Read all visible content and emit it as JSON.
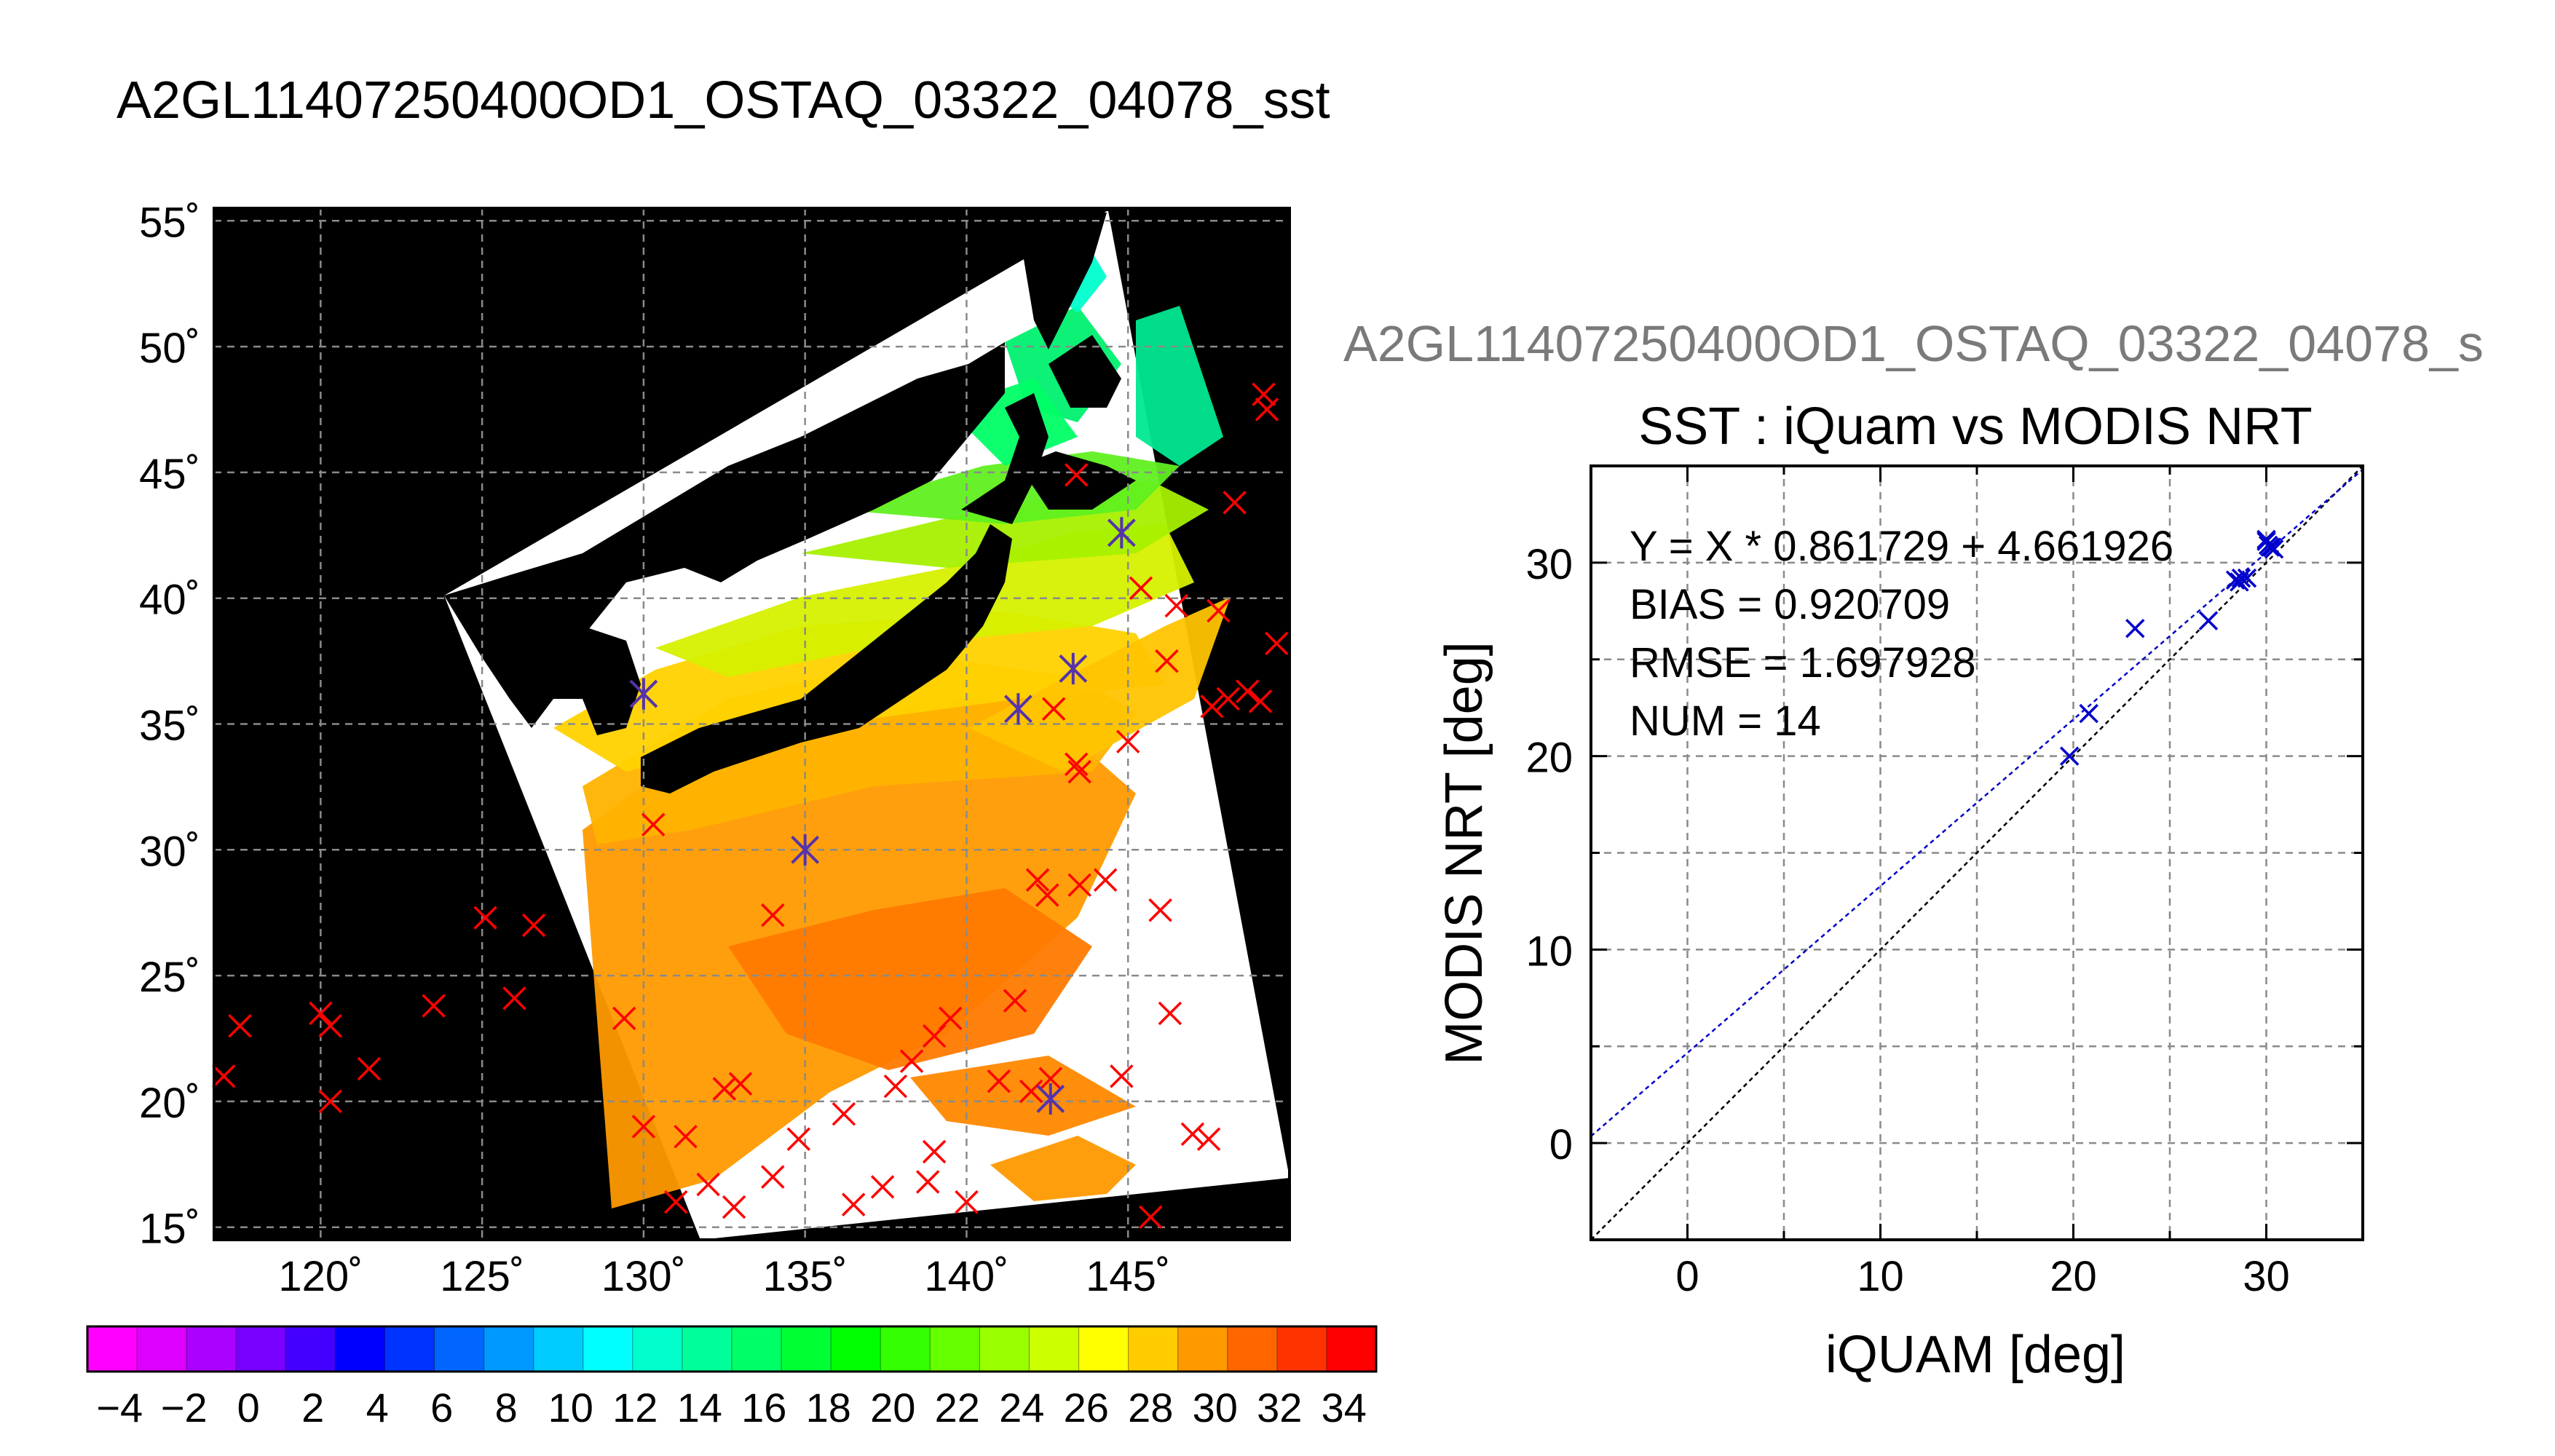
{
  "main_title": "A2GL11407250400OD1_OSTAQ_03322_04078_sst",
  "map": {
    "lat_ticks": [
      "15˚",
      "20˚",
      "25˚",
      "30˚",
      "35˚",
      "40˚",
      "45˚",
      "50˚",
      "55˚"
    ],
    "lat_values": [
      15,
      20,
      25,
      30,
      35,
      40,
      45,
      50,
      55
    ],
    "lon_ticks": [
      "120˚",
      "125˚",
      "130˚",
      "135˚",
      "140˚",
      "145˚"
    ],
    "lon_values": [
      120,
      125,
      130,
      135,
      140,
      145
    ],
    "lon_range": [
      116.7,
      150
    ],
    "lat_range": [
      14.5,
      55.5
    ],
    "colorbar_ticks": [
      "−4",
      "−2",
      "0",
      "2",
      "4",
      "6",
      "8",
      "10",
      "12",
      "14",
      "16",
      "18",
      "20",
      "22",
      "24",
      "26",
      "28",
      "30",
      "32",
      "34"
    ],
    "colorbar_range": [
      -5,
      35
    ],
    "colorbar_colors": [
      "#ff00ff",
      "#dd00ff",
      "#aa00ff",
      "#7700ff",
      "#4400ff",
      "#0000ff",
      "#0033ff",
      "#0066ff",
      "#0099ff",
      "#00ccff",
      "#00ffff",
      "#00ffcc",
      "#00ff99",
      "#00ff66",
      "#00ff33",
      "#00ff00",
      "#33ff00",
      "#66ff00",
      "#99ff00",
      "#ccff00",
      "#ffff00",
      "#ffcc00",
      "#ff9900",
      "#ff6600",
      "#ff3300",
      "#ff0000"
    ],
    "red_markers_lonlat": [
      [
        117.5,
        23
      ],
      [
        117,
        21
      ],
      [
        120,
        23.5
      ],
      [
        120.3,
        23
      ],
      [
        120.3,
        20
      ],
      [
        121.5,
        21.3
      ],
      [
        123.5,
        23.8
      ],
      [
        125.1,
        27.3
      ],
      [
        126,
        24.1
      ],
      [
        126.6,
        27
      ],
      [
        129.4,
        23.3
      ],
      [
        130,
        19
      ],
      [
        131,
        16
      ],
      [
        131.3,
        18.6
      ],
      [
        132,
        16.7
      ],
      [
        132.8,
        15.8
      ],
      [
        132.5,
        20.5
      ],
      [
        133,
        20.7
      ],
      [
        134,
        17
      ],
      [
        134.8,
        18.5
      ],
      [
        134,
        27.4
      ],
      [
        130.3,
        31
      ],
      [
        136.2,
        19.5
      ],
      [
        137.4,
        16.6
      ],
      [
        136.5,
        15.9
      ],
      [
        138.3,
        21.6
      ],
      [
        137.8,
        20.6
      ],
      [
        139,
        18
      ],
      [
        138.8,
        16.8
      ],
      [
        139,
        22.6
      ],
      [
        139.5,
        23.3
      ],
      [
        140,
        16
      ],
      [
        141,
        20.8
      ],
      [
        141.5,
        24
      ],
      [
        142,
        20.4
      ],
      [
        142.6,
        20.9
      ],
      [
        142.2,
        28.8
      ],
      [
        142.5,
        28.2
      ],
      [
        143.5,
        28.6
      ],
      [
        144.3,
        28.8
      ],
      [
        143.4,
        33.4
      ],
      [
        143.5,
        33.1
      ],
      [
        145,
        34.3
      ],
      [
        144.8,
        21
      ],
      [
        145.7,
        15.4
      ],
      [
        146,
        27.6
      ],
      [
        146.3,
        23.5
      ],
      [
        147,
        18.7
      ],
      [
        147.5,
        18.5
      ],
      [
        146.5,
        39.7
      ],
      [
        147.8,
        39.5
      ],
      [
        146.2,
        37.5
      ],
      [
        147.6,
        35.7
      ],
      [
        148.1,
        36
      ],
      [
        148.7,
        36.3
      ],
      [
        149.1,
        35.9
      ],
      [
        149.6,
        38.2
      ],
      [
        148.3,
        43.8
      ],
      [
        149.2,
        48.1
      ],
      [
        149.3,
        47.5
      ],
      [
        145.4,
        40.4
      ],
      [
        143.4,
        44.9
      ],
      [
        142.7,
        35.6
      ]
    ],
    "purple_markers_lonlat": [
      [
        130,
        36.2
      ],
      [
        135,
        30
      ],
      [
        141.6,
        35.6
      ],
      [
        143.3,
        37.2
      ],
      [
        144.8,
        42.6
      ],
      [
        142.6,
        20.1
      ]
    ]
  },
  "scatter_overlay_title": "A2GL11407250400OD1_OSTAQ_03322_04078_s",
  "chart_data": {
    "type": "scatter",
    "title": "SST : iQuam vs MODIS NRT",
    "xlabel": "iQUAM [deg]",
    "ylabel": "MODIS NRT [deg]",
    "xlim": [
      -5,
      35
    ],
    "ylim": [
      -5,
      35
    ],
    "x_ticks": [
      0,
      10,
      20,
      30
    ],
    "y_ticks": [
      0,
      10,
      20,
      30
    ],
    "grid": true,
    "annotations": [
      "Y = X * 0.861729 + 4.661926",
      "BIAS = 0.920709",
      "RMSE = 1.697928",
      "NUM = 14"
    ],
    "fit": {
      "slope": 0.861729,
      "intercept": 4.661926,
      "color": "#0000cc"
    },
    "identity_line_color": "#000000",
    "marker_color": "#0000cc",
    "points": [
      [
        19.8,
        20.0
      ],
      [
        20.8,
        22.2
      ],
      [
        23.2,
        26.6
      ],
      [
        27.0,
        27.0
      ],
      [
        28.4,
        29.1
      ],
      [
        28.7,
        29.2
      ],
      [
        29.0,
        29.2
      ],
      [
        28.6,
        29.0
      ],
      [
        30.0,
        31.1
      ],
      [
        30.1,
        30.9
      ],
      [
        30.2,
        30.8
      ],
      [
        30.3,
        30.8
      ],
      [
        30.0,
        31.2
      ],
      [
        30.4,
        30.7
      ]
    ]
  }
}
